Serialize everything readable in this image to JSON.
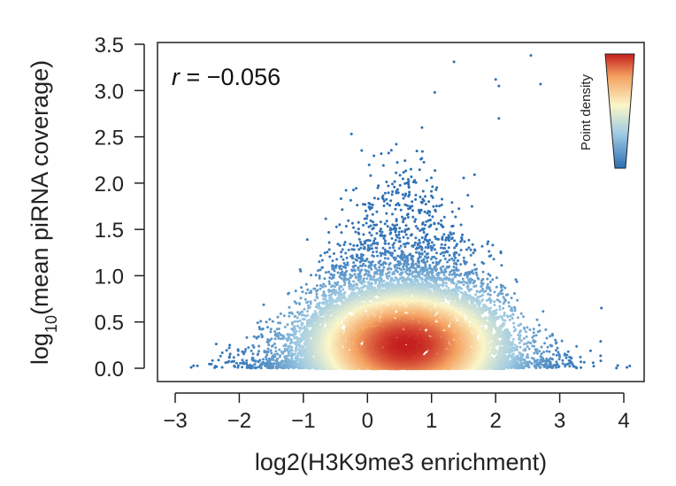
{
  "chart_data": {
    "type": "scatter",
    "subtype": "density-colored",
    "title": "",
    "xlabel": "log2(H3K9me3 enrichment)",
    "ylabel": {
      "prefix": "log",
      "subscript": "10",
      "suffix": "(mean piRNA coverage)"
    },
    "xlim": [
      -3.3,
      4.3
    ],
    "ylim": [
      -0.12,
      3.55
    ],
    "xticks": [
      -3,
      -2,
      -1,
      0,
      1,
      2,
      3,
      4
    ],
    "xtick_labels": [
      "−3",
      "−2",
      "−1",
      "0",
      "1",
      "2",
      "3",
      "4"
    ],
    "yticks": [
      0.0,
      0.5,
      1.0,
      1.5,
      2.0,
      2.5,
      3.0,
      3.5
    ],
    "ytick_labels": [
      "0.0",
      "0.5",
      "1.0",
      "1.5",
      "2.0",
      "2.5",
      "3.0",
      "3.5"
    ],
    "grid": false,
    "annotation": {
      "label": "r",
      "value": " = −0.056",
      "r": -0.056,
      "position": "top-left"
    },
    "colorbar": {
      "title": "Point density",
      "placement": "top-right",
      "colors": [
        "#2c6fb5",
        "#9fcbe3",
        "#fbf6c9",
        "#f4a261",
        "#c41e1e"
      ]
    },
    "density_peak": {
      "x": 0.6,
      "y": 0.25
    },
    "notable_points": [
      {
        "x": 1.35,
        "y": 3.31
      },
      {
        "x": 2.55,
        "y": 3.38
      },
      {
        "x": 2.7,
        "y": 3.07
      },
      {
        "x": 1.05,
        "y": 2.98
      },
      {
        "x": 2.0,
        "y": 3.12
      },
      {
        "x": 2.05,
        "y": 3.05
      },
      {
        "x": 2.05,
        "y": 2.7
      },
      {
        "x": 0.85,
        "y": 2.6
      },
      {
        "x": -0.25,
        "y": 2.53
      },
      {
        "x": 0.45,
        "y": 2.42
      },
      {
        "x": -2.75,
        "y": 0.01
      },
      {
        "x": 4.05,
        "y": 0.01
      },
      {
        "x": -2.15,
        "y": 0.25
      },
      {
        "x": 3.65,
        "y": 0.65
      }
    ]
  }
}
